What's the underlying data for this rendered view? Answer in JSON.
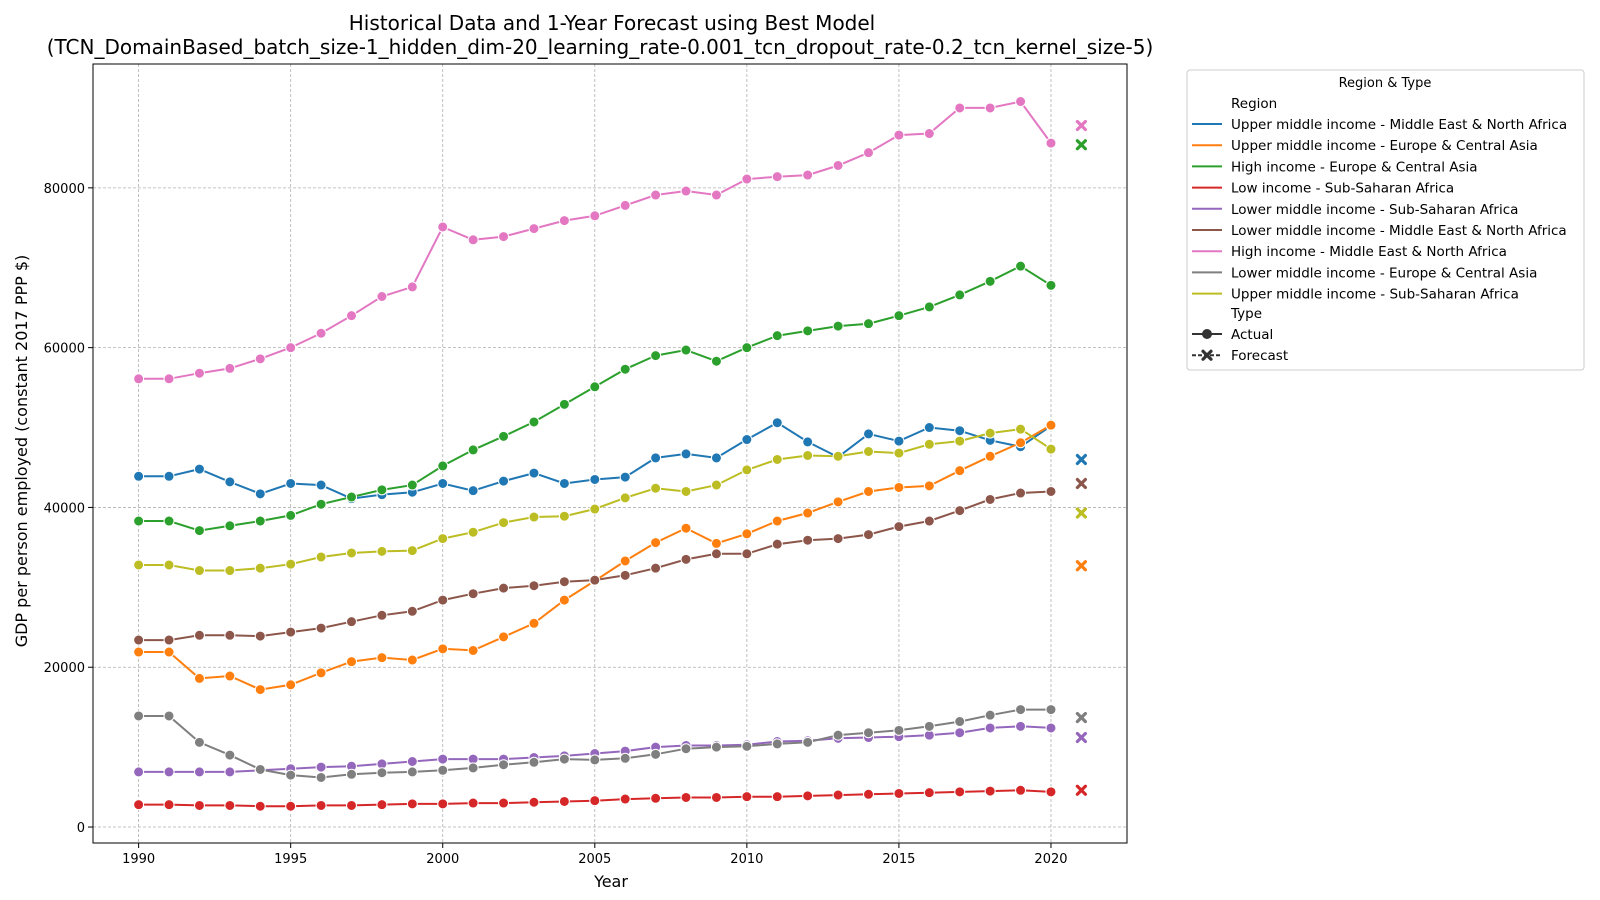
{
  "chart_data": {
    "type": "line",
    "title": "Historical Data and 1-Year Forecast using Best Model",
    "subtitle": "(TCN_DomainBased_batch_size-1_hidden_dim-20_learning_rate-0.001_tcn_dropout_rate-0.2_tcn_kernel_size-5)",
    "xlabel": "Year",
    "ylabel": "GDP per person employed (constant 2017 PPP $)",
    "xlim": [
      1988.5,
      2022.5
    ],
    "ylim": [
      -2000,
      95500
    ],
    "xticks": [
      1990,
      1995,
      2000,
      2005,
      2010,
      2015,
      2020
    ],
    "yticks": [
      0,
      20000,
      40000,
      60000,
      80000
    ],
    "grid": true,
    "x": [
      1990,
      1991,
      1992,
      1993,
      1994,
      1995,
      1996,
      1997,
      1998,
      1999,
      2000,
      2001,
      2002,
      2003,
      2004,
      2005,
      2006,
      2007,
      2008,
      2009,
      2010,
      2011,
      2012,
      2013,
      2014,
      2015,
      2016,
      2017,
      2018,
      2019,
      2020
    ],
    "forecast_x": 2021,
    "series": [
      {
        "name": "Upper middle income - Middle East & North Africa",
        "color": "#1f77b4",
        "values": [
          43900,
          43900,
          44800,
          43200,
          41700,
          43000,
          42800,
          41100,
          41600,
          41900,
          43000,
          42100,
          43300,
          44300,
          43000,
          43500,
          43800,
          46200,
          46700,
          46200,
          48500,
          50600,
          48200,
          46300,
          49200,
          48300,
          50000,
          49600,
          48400,
          47600,
          50200
        ],
        "forecast": 46000
      },
      {
        "name": "Upper middle income - Europe & Central Asia",
        "color": "#ff7f0e",
        "values": [
          21900,
          21900,
          18600,
          18900,
          17200,
          17800,
          19300,
          20700,
          21200,
          20900,
          22300,
          22100,
          23800,
          25500,
          28400,
          30800,
          33300,
          35600,
          37400,
          35500,
          36700,
          38300,
          39300,
          40700,
          42000,
          42500,
          42700,
          44600,
          46400,
          48100,
          50300
        ],
        "forecast": 32700
      },
      {
        "name": "High income - Europe & Central Asia",
        "color": "#2ca02c",
        "values": [
          38300,
          38300,
          37100,
          37700,
          38300,
          39000,
          40400,
          41300,
          42200,
          42800,
          45200,
          47200,
          48900,
          50700,
          52900,
          55100,
          57300,
          59000,
          59700,
          58300,
          60000,
          61500,
          62100,
          62700,
          63000,
          64000,
          65100,
          66600,
          68300,
          70200,
          67800
        ],
        "forecast": 85400
      },
      {
        "name": "Low income - Sub-Saharan Africa",
        "color": "#d62728",
        "values": [
          2800,
          2800,
          2700,
          2700,
          2600,
          2600,
          2700,
          2700,
          2800,
          2900,
          2900,
          3000,
          3000,
          3100,
          3200,
          3300,
          3500,
          3600,
          3700,
          3700,
          3800,
          3800,
          3900,
          4000,
          4100,
          4200,
          4300,
          4400,
          4500,
          4600,
          4400
        ],
        "forecast": 4600
      },
      {
        "name": "Lower middle income - Sub-Saharan Africa",
        "color": "#9467bd",
        "values": [
          6900,
          6900,
          6900,
          6900,
          7100,
          7300,
          7500,
          7600,
          7900,
          8200,
          8500,
          8500,
          8500,
          8700,
          8900,
          9200,
          9500,
          10000,
          10200,
          10200,
          10300,
          10700,
          10800,
          11100,
          11200,
          11300,
          11500,
          11800,
          12400,
          12600,
          12400
        ],
        "forecast": 11200
      },
      {
        "name": "Lower middle income - Middle East & North Africa",
        "color": "#8c564b",
        "values": [
          23400,
          23400,
          24000,
          24000,
          23900,
          24400,
          24900,
          25700,
          26500,
          27000,
          28400,
          29200,
          29900,
          30200,
          30700,
          30900,
          31500,
          32400,
          33500,
          34200,
          34200,
          35400,
          35900,
          36100,
          36600,
          37600,
          38300,
          39600,
          41000,
          41800,
          42000
        ],
        "forecast": 43000
      },
      {
        "name": "High income - Middle East & North Africa",
        "color": "#e377c2",
        "values": [
          56100,
          56100,
          56800,
          57400,
          58600,
          60000,
          61800,
          64000,
          66400,
          67600,
          75100,
          73500,
          73900,
          74900,
          75900,
          76500,
          77800,
          79100,
          79600,
          79100,
          81100,
          81400,
          81600,
          82800,
          84400,
          86600,
          86800,
          90000,
          90000,
          90800,
          85600
        ],
        "forecast": 87800
      },
      {
        "name": "Lower middle income - Europe & Central Asia",
        "color": "#7f7f7f",
        "values": [
          13900,
          13900,
          10600,
          9000,
          7200,
          6500,
          6200,
          6600,
          6800,
          6900,
          7100,
          7400,
          7800,
          8100,
          8500,
          8400,
          8600,
          9100,
          9800,
          10000,
          10100,
          10400,
          10600,
          11500,
          11800,
          12100,
          12600,
          13200,
          14000,
          14700,
          14700
        ],
        "forecast": 13700
      },
      {
        "name": "Upper middle income - Sub-Saharan Africa",
        "color": "#bcbd22",
        "values": [
          32800,
          32800,
          32100,
          32100,
          32400,
          32900,
          33800,
          34300,
          34500,
          34600,
          36100,
          36900,
          38100,
          38800,
          38900,
          39800,
          41200,
          42400,
          42000,
          42800,
          44700,
          46000,
          46500,
          46400,
          47000,
          46800,
          47900,
          48300,
          49300,
          49800,
          47300
        ],
        "forecast": 39300
      }
    ],
    "legend": {
      "title": "Region & Type",
      "position": "outside-right",
      "region_header": "Region",
      "type_header": "Type",
      "type_entries": [
        {
          "label": "Actual",
          "marker": "circle"
        },
        {
          "label": "Forecast",
          "marker": "x"
        }
      ]
    }
  }
}
